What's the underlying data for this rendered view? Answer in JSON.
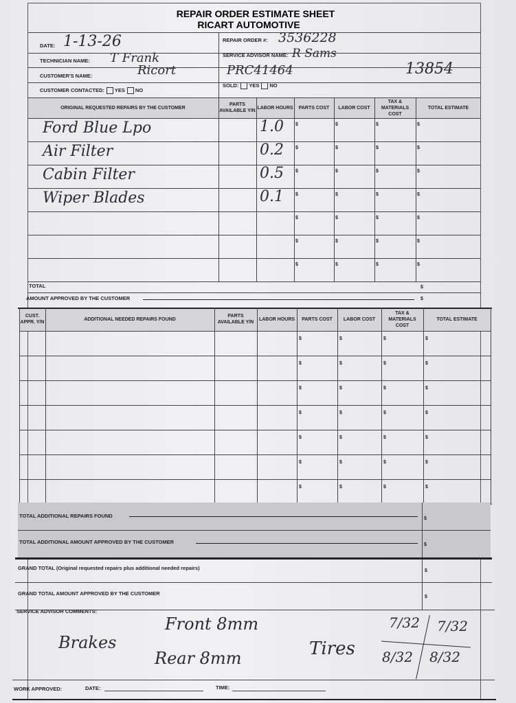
{
  "header": {
    "title": "REPAIR ORDER ESTIMATE SHEET",
    "company": "RICART AUTOMOTIVE"
  },
  "fields": {
    "date_label": "DATE:",
    "date_value": "1-13-26",
    "technician_label": "TECHNICIAN NAME:",
    "technician_value": "T Frank",
    "customer_label": "CUSTOMER'S NAME:",
    "customer_value": "Ricort",
    "contacted_label": "CUSTOMER CONTACTED:",
    "yes": "YES",
    "no": "NO",
    "repair_order_label": "REPAIR ORDER #:",
    "repair_order_value": "3536228",
    "advisor_label": "SERVICE ADVISOR NAME:",
    "advisor_value": "R Sams",
    "extra_code": "PRC41464",
    "extra_number": "13854",
    "sold_label": "SOLD:"
  },
  "table1": {
    "headers": [
      "ORIGINAL REQUESTED REPAIRS BY THE CUSTOMER",
      "PARTS AVAILABLE Y/N",
      "LABOR HOURS",
      "PARTS COST",
      "LABOR COST",
      "TAX & MATERIALS COST",
      "TOTAL ESTIMATE"
    ],
    "rows": [
      {
        "repair": "Ford Blue Lpo",
        "hours": "1.0"
      },
      {
        "repair": "Air Filter",
        "hours": "0.2"
      },
      {
        "repair": "Cabin Filter",
        "hours": "0.5"
      },
      {
        "repair": "Wiper Blades",
        "hours": "0.1"
      },
      {
        "repair": "",
        "hours": ""
      },
      {
        "repair": "",
        "hours": ""
      },
      {
        "repair": "",
        "hours": ""
      }
    ],
    "total_label": "TOTAL",
    "approved_label": "AMOUNT APPROVED BY THE CUSTOMER"
  },
  "table2": {
    "headers": [
      "CUST. APPR. Y/N",
      "ADDITIONAL NEEDED REPAIRS FOUND",
      "PARTS AVAILABLE Y/N",
      "LABOR HOURS",
      "PARTS COST",
      "LABOR COST",
      "TAX & MATERIALS COST",
      "TOTAL ESTIMATE"
    ],
    "row_count": 7,
    "total_found_label": "TOTAL ADDITIONAL REPAIRS FOUND",
    "total_approved_label": "TOTAL ADDITIONAL AMOUNT APPROVED BY THE CUSTOMER"
  },
  "grand": {
    "total_label": "GRAND TOTAL (Original requested repairs plus additional needed repairs)",
    "approved_label": "GRAND TOTAL AMOUNT APPROVED BY THE CUSTOMER"
  },
  "comments": {
    "label": "SERVICE ADVISOR COMMENTS:",
    "brakes": "Brakes",
    "front": "Front 8mm",
    "rear": "Rear 8mm",
    "tires": "Tires",
    "t1": "7/32",
    "t2": "7/32",
    "t3": "8/32",
    "t4": "8/32"
  },
  "footer": {
    "work_approved": "WORK APPROVED:",
    "date": "DATE:",
    "time": "TIME:"
  },
  "currency": "$"
}
